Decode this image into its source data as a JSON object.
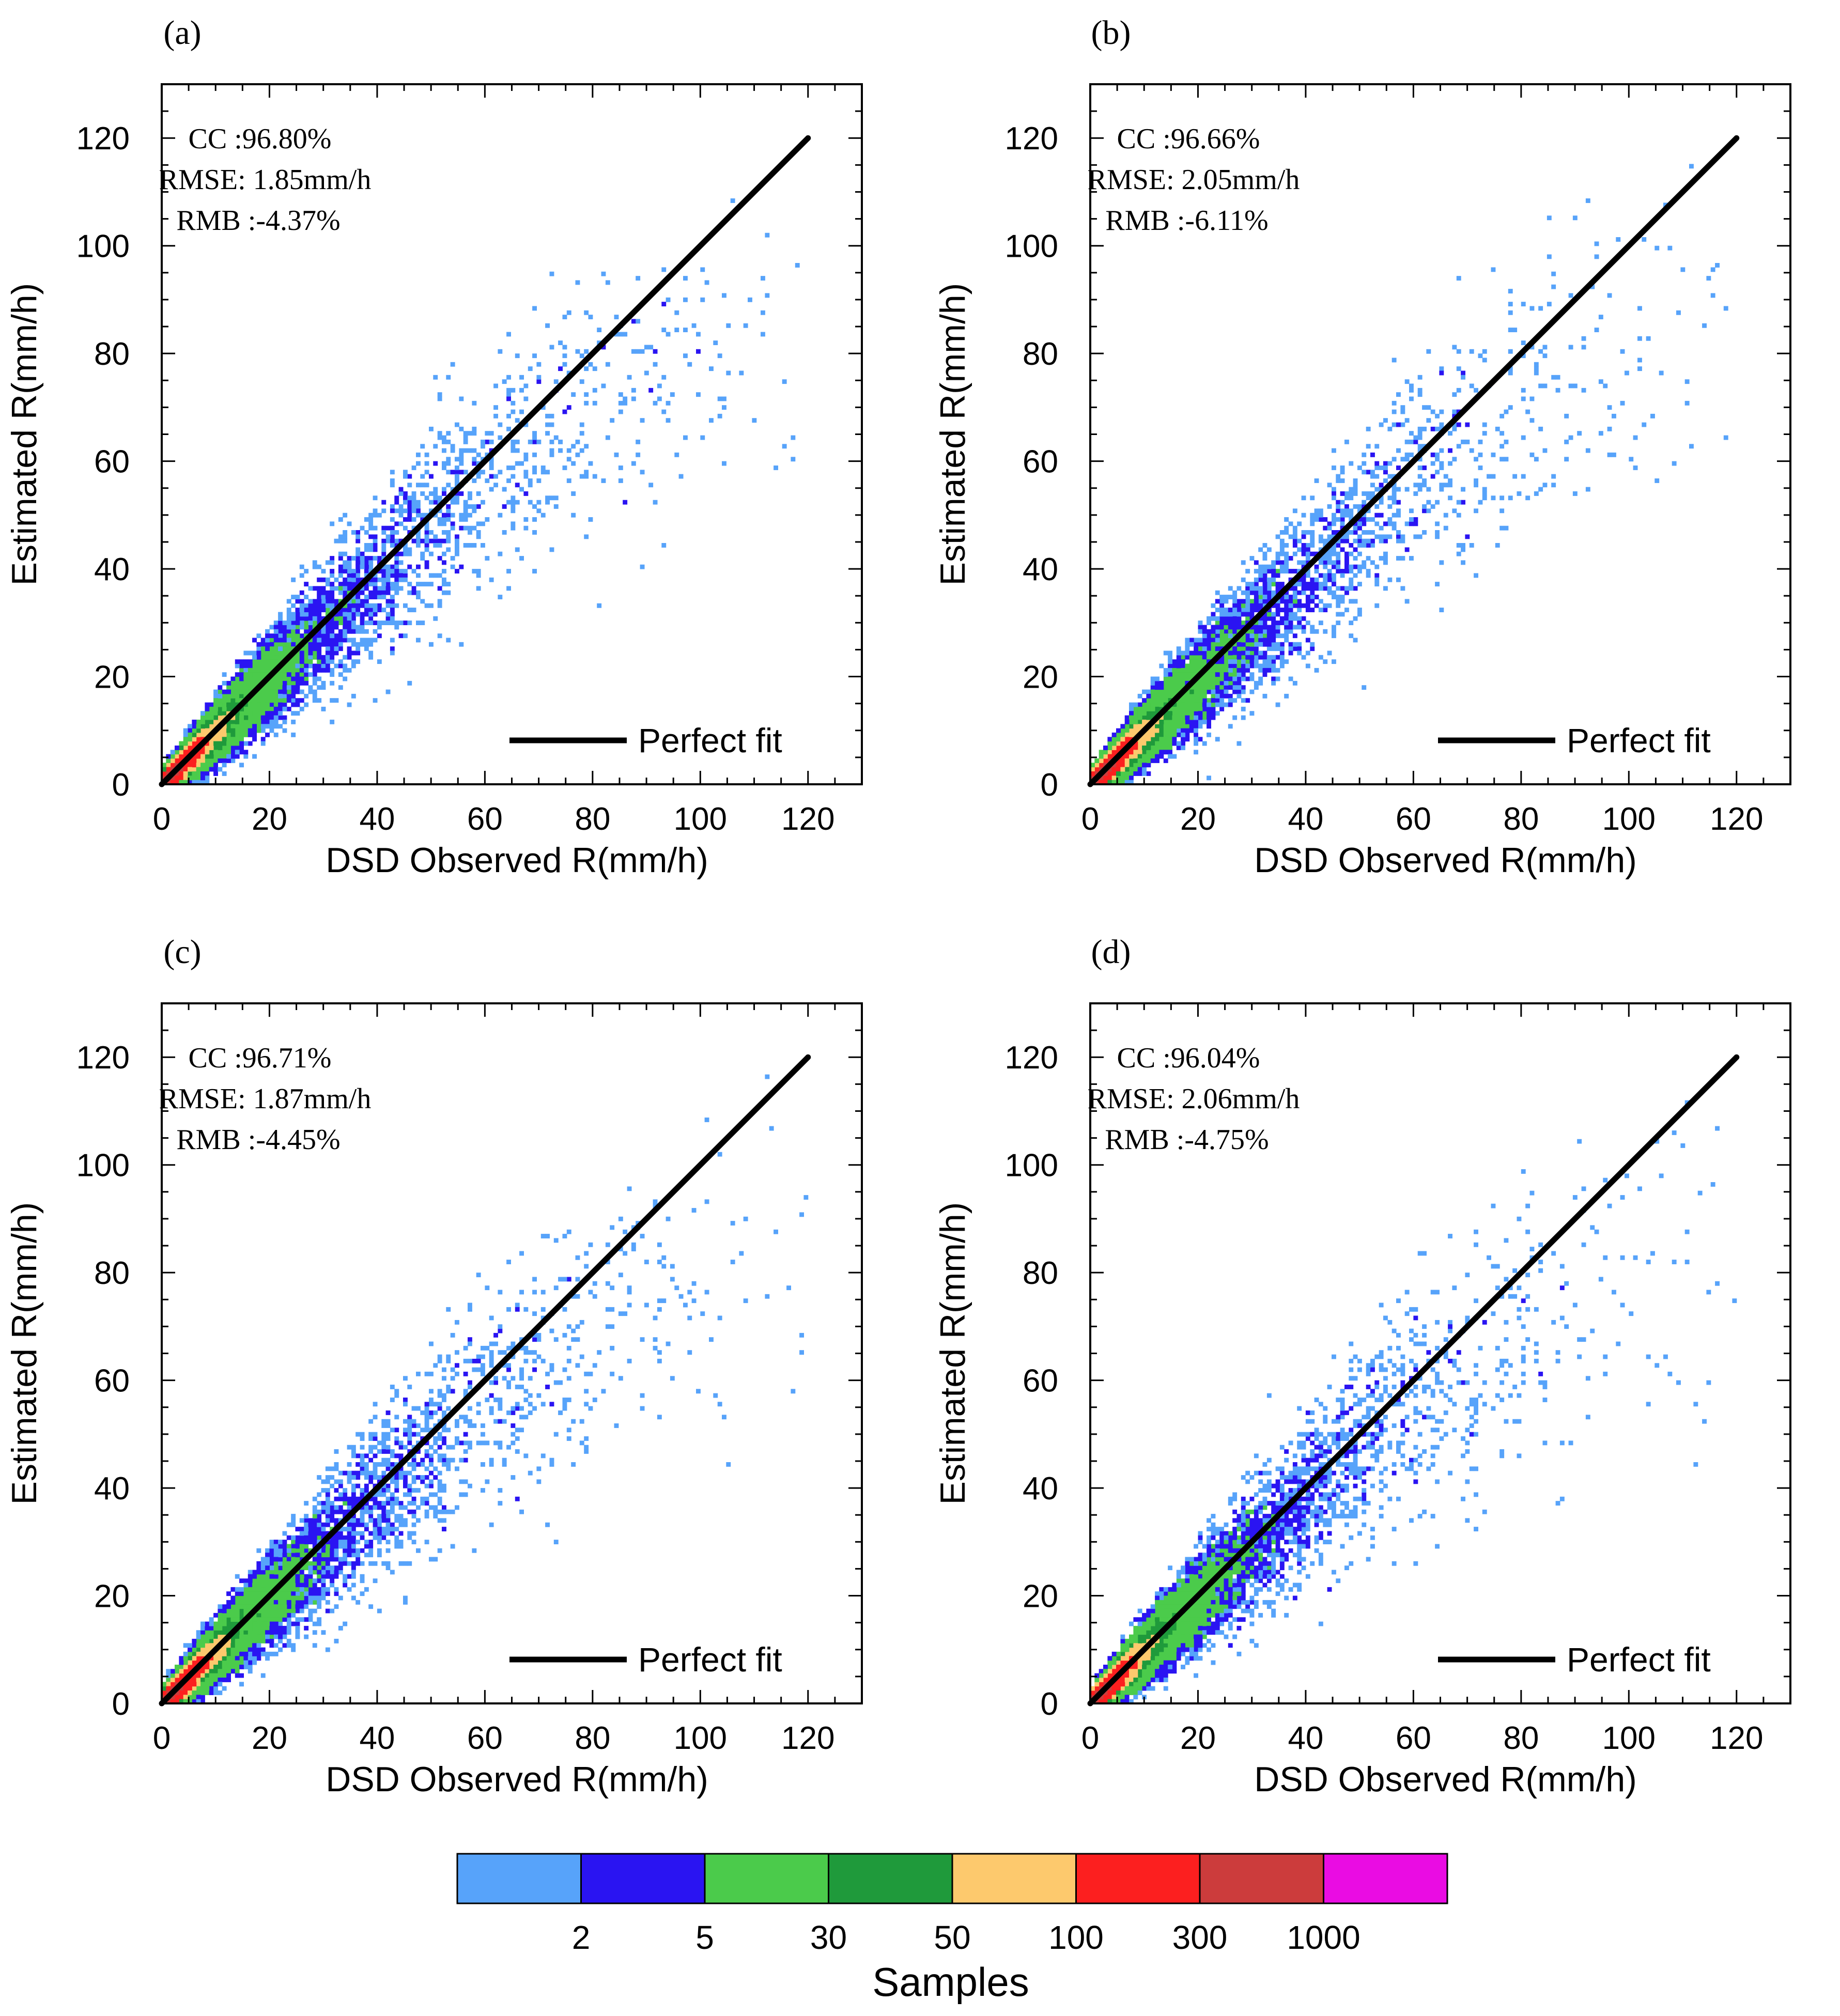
{
  "chart_data": [
    {
      "panel": "(a)",
      "type": "heatmap",
      "xlabel": "DSD Observed R(mm/h)",
      "ylabel": "Estimated R(mm/h)",
      "xlim": [
        0,
        130
      ],
      "ylim": [
        0,
        130
      ],
      "xticks": [
        "0",
        "20",
        "40",
        "60",
        "80",
        "100",
        "120"
      ],
      "yticks": [
        "0",
        "20",
        "40",
        "60",
        "80",
        "100",
        "120"
      ],
      "stats": [
        "CC :96.80%",
        "RMSE: 1.85mm/h",
        "RMB :-4.37%"
      ],
      "legend": "Perfect fit",
      "fit_line": [
        [
          0,
          0
        ],
        [
          120,
          120
        ]
      ],
      "bias": -4.37
    },
    {
      "panel": "(b)",
      "type": "heatmap",
      "xlabel": "DSD Observed R(mm/h)",
      "ylabel": "Estimated R(mm/h)",
      "xlim": [
        0,
        130
      ],
      "ylim": [
        0,
        130
      ],
      "xticks": [
        "0",
        "20",
        "40",
        "60",
        "80",
        "100",
        "120"
      ],
      "yticks": [
        "0",
        "20",
        "40",
        "60",
        "80",
        "100",
        "120"
      ],
      "stats": [
        "CC :96.66%",
        "RMSE: 2.05mm/h",
        "RMB :-6.11%"
      ],
      "legend": "Perfect fit",
      "fit_line": [
        [
          0,
          0
        ],
        [
          120,
          120
        ]
      ],
      "bias": -6.11
    },
    {
      "panel": "(c)",
      "type": "heatmap",
      "xlabel": "DSD Observed R(mm/h)",
      "ylabel": "Estimated R(mm/h)",
      "xlim": [
        0,
        130
      ],
      "ylim": [
        0,
        130
      ],
      "xticks": [
        "0",
        "20",
        "40",
        "60",
        "80",
        "100",
        "120"
      ],
      "yticks": [
        "0",
        "20",
        "40",
        "60",
        "80",
        "100",
        "120"
      ],
      "stats": [
        "CC :96.71%",
        "RMSE: 1.87mm/h",
        "RMB :-4.45%"
      ],
      "legend": "Perfect fit",
      "fit_line": [
        [
          0,
          0
        ],
        [
          120,
          120
        ]
      ],
      "bias": -4.45
    },
    {
      "panel": "(d)",
      "type": "heatmap",
      "xlabel": "DSD Observed R(mm/h)",
      "ylabel": "Estimated R(mm/h)",
      "xlim": [
        0,
        130
      ],
      "ylim": [
        0,
        130
      ],
      "xticks": [
        "0",
        "20",
        "40",
        "60",
        "80",
        "100",
        "120"
      ],
      "yticks": [
        "0",
        "20",
        "40",
        "60",
        "80",
        "100",
        "120"
      ],
      "stats": [
        "CC :96.04%",
        "RMSE: 2.06mm/h",
        "RMB :-4.75%"
      ],
      "legend": "Perfect fit",
      "fit_line": [
        [
          0,
          0
        ],
        [
          120,
          120
        ]
      ],
      "bias": -4.75
    }
  ],
  "colorbar": {
    "title": "Samples",
    "colors": [
      "#57a3fa",
      "#2a14f2",
      "#4bcb4b",
      "#1f9a3b",
      "#fdc96d",
      "#fc1f1f",
      "#cc3c3c",
      "#ea0ce3"
    ],
    "labels": [
      "2",
      "5",
      "30",
      "50",
      "100",
      "300",
      "1000"
    ]
  }
}
